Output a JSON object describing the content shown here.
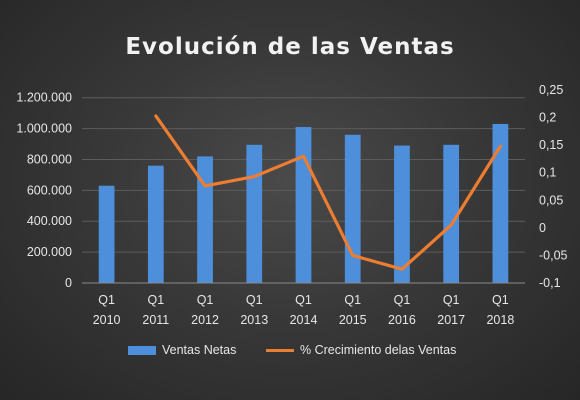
{
  "chart_data": {
    "type": "bar",
    "title": "Evolución de las Ventas",
    "categories": [
      [
        "Q1",
        "2010"
      ],
      [
        "Q1",
        "2011"
      ],
      [
        "Q1",
        "2012"
      ],
      [
        "Q1",
        "2013"
      ],
      [
        "Q1",
        "2014"
      ],
      [
        "Q1",
        "2015"
      ],
      [
        "Q1",
        "2016"
      ],
      [
        "Q1",
        "2017"
      ],
      [
        "Q1",
        "2018"
      ]
    ],
    "series": [
      {
        "name": "Ventas Netas",
        "type": "bar",
        "axis": "left",
        "color": "#4e8fdb",
        "values": [
          630000,
          760000,
          820000,
          895000,
          1010000,
          960000,
          890000,
          895000,
          1030000
        ]
      },
      {
        "name": "% Crecimiento delas Ventas",
        "type": "line",
        "axis": "right",
        "color": "#ed7d31",
        "values": [
          null,
          0.203,
          0.076,
          0.093,
          0.13,
          -0.05,
          -0.075,
          0.005,
          0.148
        ]
      }
    ],
    "y_left": {
      "range": [
        0,
        1250000
      ],
      "ticks": [
        0,
        200000,
        400000,
        600000,
        800000,
        1000000,
        1200000
      ],
      "tick_labels": [
        "0",
        "200.000",
        "400.000",
        "600.000",
        "800.000",
        "1.000.000",
        "1.200.000"
      ]
    },
    "y_right": {
      "range": [
        -0.1,
        0.25
      ],
      "ticks": [
        -0.1,
        -0.05,
        0,
        0.05,
        0.1,
        0.15,
        0.2,
        0.25
      ],
      "tick_labels": [
        "-0,1",
        "-0,05",
        "0",
        "0,05",
        "0,1",
        "0,15",
        "0,2",
        "0,25"
      ]
    },
    "grid": true,
    "legend_position": "bottom"
  }
}
